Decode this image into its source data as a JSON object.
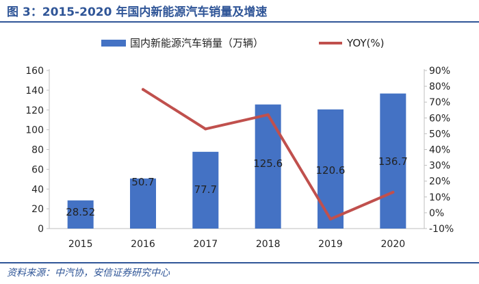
{
  "figure": {
    "title": "图 3：2015-2020 年国内新能源汽车销量及增速",
    "source": "资料来源：中汽协，安信证券研究中心"
  },
  "colors": {
    "bar": "#4472c4",
    "line": "#c0504d",
    "axis": "#bfbfbf",
    "heading": "#2f5597",
    "text": "#222222"
  },
  "chart_data": {
    "type": "bar",
    "categories": [
      "2015",
      "2016",
      "2017",
      "2018",
      "2019",
      "2020"
    ],
    "series": [
      {
        "name": "国内新能源汽车销量（万辆）",
        "type": "bar",
        "axis": "left",
        "values": [
          28.52,
          50.7,
          77.7,
          125.6,
          120.6,
          136.7
        ],
        "labels": [
          "28.52",
          "50.7",
          "77.7",
          "125.6",
          "120.6",
          "136.7"
        ]
      },
      {
        "name": "YOY(%)",
        "type": "line",
        "axis": "right",
        "values": [
          null,
          78,
          53,
          62,
          -4,
          13
        ]
      }
    ],
    "ylim": [
      0,
      160
    ],
    "yticks": [
      "0",
      "20",
      "40",
      "60",
      "80",
      "100",
      "120",
      "140",
      "160"
    ],
    "y2lim": [
      -10,
      90
    ],
    "y2ticks": [
      "-10%",
      "0%",
      "10%",
      "20%",
      "30%",
      "40%",
      "50%",
      "60%",
      "70%",
      "80%",
      "90%"
    ],
    "legend_position": "top-center",
    "grid": false
  }
}
